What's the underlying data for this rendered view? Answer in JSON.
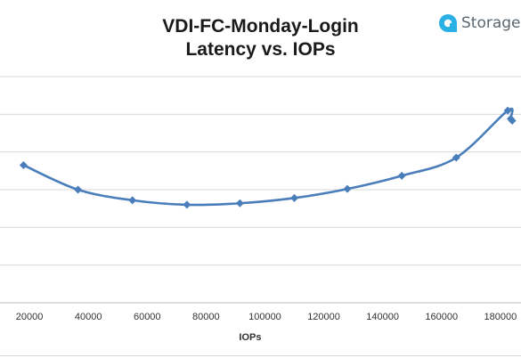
{
  "logo": {
    "text": "Storage",
    "icon": "storage-logo-icon",
    "color": "#2bb0e6"
  },
  "chart_data": {
    "type": "line",
    "title": "VDI-FC-Monday-Login",
    "subtitle": "Latency vs. IOPs",
    "xlabel": "IOPs",
    "ylabel": "",
    "xlim": [
      10000,
      187000
    ],
    "x_ticks": [
      "20000",
      "40000",
      "60000",
      "80000",
      "100000",
      "120000",
      "140000",
      "160000",
      "180000"
    ],
    "y_gridlines": 7,
    "y_tick_labels_visible": false,
    "grid": "horizontal",
    "legend": "none",
    "marker": "diamond",
    "smooth": true,
    "series_color": "#4a7ebb",
    "series": [
      {
        "x": [
          18000,
          36500,
          55000,
          73500,
          91500,
          110000,
          128000,
          146500,
          165000,
          182500,
          183500,
          184000
        ],
        "y": [
          3.65,
          3.0,
          2.72,
          2.6,
          2.64,
          2.78,
          3.02,
          3.37,
          3.85,
          5.1,
          4.88,
          4.83
        ]
      }
    ]
  }
}
